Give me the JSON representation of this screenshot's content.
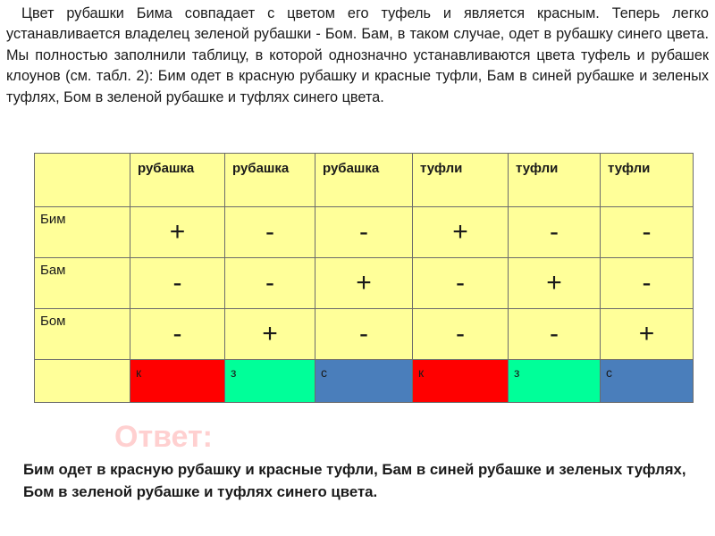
{
  "intro_text": "Цвет рубашки Бима совпадает с цветом его туфель и является красным. Теперь легко устанавливается владелец зеленой рубашки - Бом. Бам, в таком случае, одет в рубашку синего цвета. Мы полностью заполнили таблицу, в которой однозначно устанавливаются цвета туфель и рубашек клоунов (см. табл. 2): Бим одет в красную рубашку и красные туфли, Бам в синей рубашке и зеленых туфлях, Бом в зеленой рубашке и туфлях синего  цвета.",
  "table": {
    "corner": "",
    "headers": [
      "рубашка",
      "рубашка",
      "рубашка",
      "туфли",
      "туфли",
      "туфли"
    ],
    "rows": [
      {
        "label": "Бим",
        "cells": [
          "+",
          "-",
          "-",
          "+",
          "-",
          "-"
        ]
      },
      {
        "label": "Бам",
        "cells": [
          "-",
          "-",
          "+",
          "-",
          "+",
          "-"
        ]
      },
      {
        "label": "Бом",
        "cells": [
          "-",
          "+",
          "-",
          "-",
          "-",
          "+"
        ]
      }
    ],
    "color_row": {
      "label": "",
      "cells": [
        {
          "text": "к",
          "color": "#ff0000"
        },
        {
          "text": "з",
          "color": "#00ff99"
        },
        {
          "text": "с",
          "color": "#4a7ebb"
        },
        {
          "text": "к",
          "color": "#ff0000"
        },
        {
          "text": "з",
          "color": "#00ff99"
        },
        {
          "text": "с",
          "color": "#4a7ebb"
        }
      ]
    }
  },
  "answer_title": "Ответ:",
  "answer_text": "Бим одет в красную рубашку и красные туфли, Бам в синей рубашке и зеленых туфлях, Бом в зеленой рубашке и туфлях синего цвета."
}
